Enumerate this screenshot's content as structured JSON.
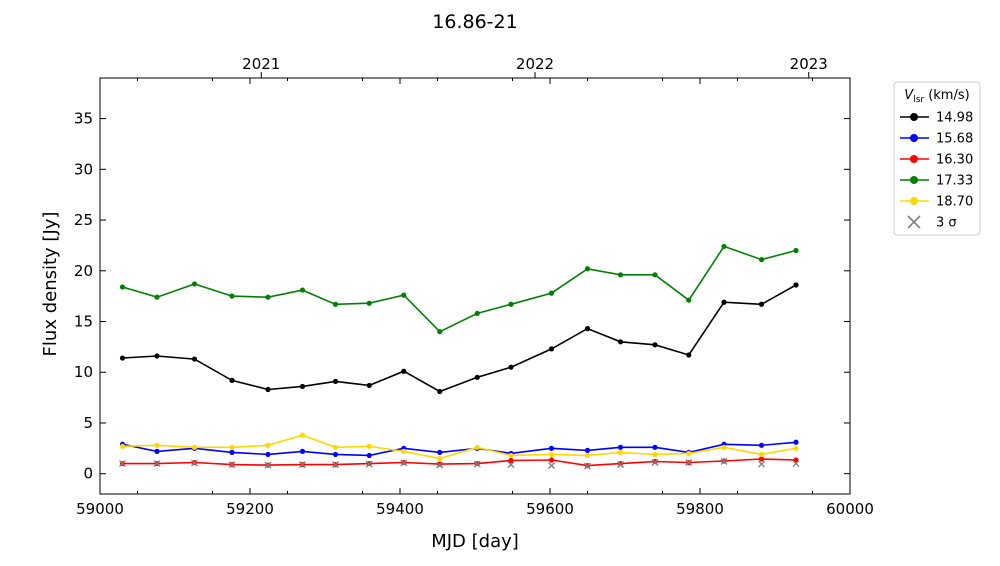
{
  "chart_data": {
    "type": "line",
    "title": "16.86-21",
    "xlabel": "MJD [day]",
    "ylabel": "Flux density [Jy]",
    "xlim": [
      59000,
      60000
    ],
    "ylim": [
      -2,
      39
    ],
    "xticks": [
      59000,
      59200,
      59400,
      59600,
      59800,
      60000
    ],
    "yticks": [
      0,
      5,
      10,
      15,
      20,
      25,
      30,
      35
    ],
    "top_axis": {
      "labels": [
        "2021",
        "2022",
        "2023"
      ],
      "positions": [
        59215,
        59580,
        59945
      ]
    },
    "x": [
      59030,
      59076,
      59126,
      59176,
      59224,
      59270,
      59314,
      59359,
      59405,
      59453,
      59503,
      59548,
      59602,
      59650,
      59694,
      59740,
      59785,
      59832,
      59882,
      59928
    ],
    "series": [
      {
        "name": "14.98",
        "color": "#000000",
        "values": [
          11.4,
          11.6,
          11.3,
          9.2,
          8.3,
          8.6,
          9.1,
          8.7,
          10.1,
          8.1,
          9.5,
          10.5,
          12.3,
          14.3,
          13.0,
          12.7,
          11.7,
          16.9,
          16.7,
          18.6
        ]
      },
      {
        "name": "15.68",
        "color": "#0000ff",
        "values": [
          2.9,
          2.2,
          2.5,
          2.1,
          1.9,
          2.2,
          1.9,
          1.8,
          2.5,
          2.1,
          2.5,
          2.0,
          2.5,
          2.3,
          2.6,
          2.6,
          2.1,
          2.9,
          2.8,
          3.1
        ]
      },
      {
        "name": "16.30",
        "color": "#ff0000",
        "values": [
          1.0,
          1.0,
          1.1,
          0.9,
          0.85,
          0.9,
          0.9,
          1.0,
          1.1,
          0.95,
          1.0,
          1.3,
          1.35,
          0.8,
          1.0,
          1.2,
          1.1,
          1.25,
          1.45,
          1.35
        ]
      },
      {
        "name": "17.33",
        "color": "#008000",
        "values": [
          18.4,
          17.4,
          18.7,
          17.5,
          17.4,
          18.1,
          16.7,
          16.8,
          17.6,
          14.0,
          15.8,
          16.7,
          17.8,
          20.2,
          19.6,
          19.6,
          17.1,
          22.4,
          21.1,
          22.0
        ]
      },
      {
        "name": "18.70",
        "color": "#ffd700",
        "values": [
          2.7,
          2.8,
          2.6,
          2.6,
          2.8,
          3.8,
          2.6,
          2.7,
          2.2,
          1.5,
          2.6,
          1.8,
          1.9,
          1.8,
          2.1,
          1.9,
          2.0,
          2.6,
          1.9,
          2.5
        ]
      }
    ],
    "upper_limits_3sigma": {
      "label": "3 σ",
      "color": "#808080",
      "points": [
        {
          "x": 59030,
          "y": 1.0
        },
        {
          "x": 59076,
          "y": 1.0
        },
        {
          "x": 59126,
          "y": 1.05
        },
        {
          "x": 59176,
          "y": 0.9
        },
        {
          "x": 59224,
          "y": 0.85
        },
        {
          "x": 59270,
          "y": 0.9
        },
        {
          "x": 59314,
          "y": 0.9
        },
        {
          "x": 59359,
          "y": 0.95
        },
        {
          "x": 59405,
          "y": 1.05
        },
        {
          "x": 59453,
          "y": 0.85
        },
        {
          "x": 59503,
          "y": 0.95
        },
        {
          "x": 59548,
          "y": 0.9
        },
        {
          "x": 59602,
          "y": 0.8
        },
        {
          "x": 59650,
          "y": 0.75
        },
        {
          "x": 59694,
          "y": 0.9
        },
        {
          "x": 59740,
          "y": 1.1
        },
        {
          "x": 59785,
          "y": 1.1
        },
        {
          "x": 59832,
          "y": 1.2
        },
        {
          "x": 59882,
          "y": 0.95
        },
        {
          "x": 59928,
          "y": 1.0
        }
      ]
    },
    "legend": {
      "title_symbol": "V",
      "title_subscript": "lsr",
      "title_unit": " (km/s)",
      "placement": "outside-right-top"
    },
    "grid": false
  }
}
